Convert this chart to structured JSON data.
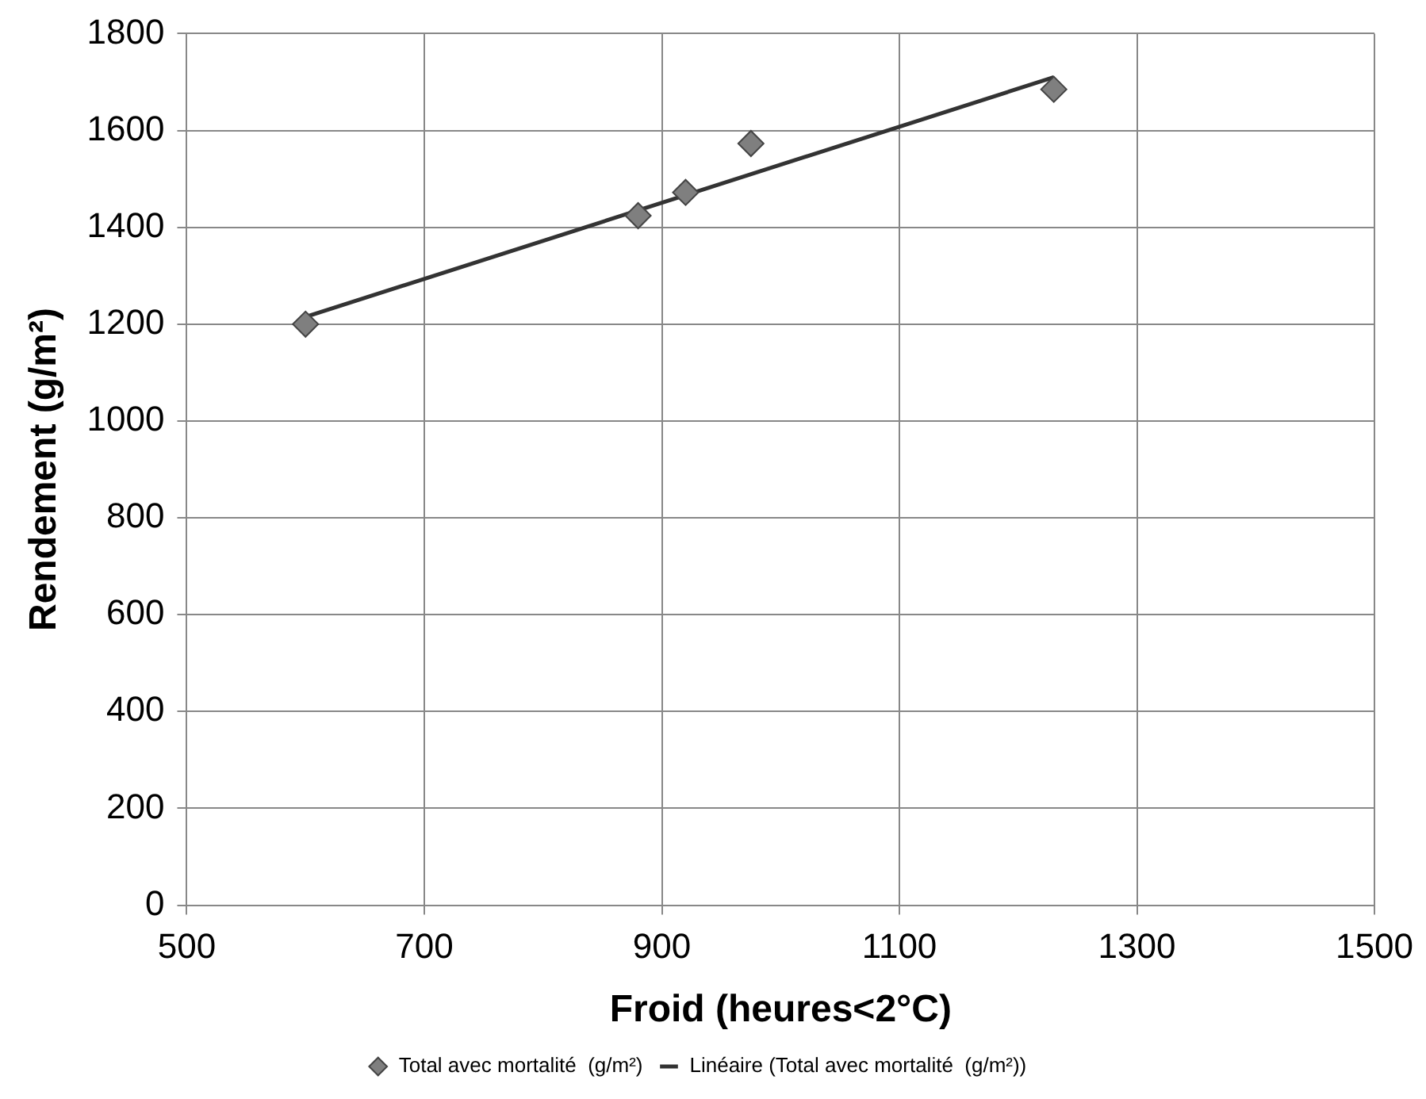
{
  "chart_data": {
    "type": "scatter",
    "xlabel": "Froid (heures<2°C)",
    "ylabel": "Rendement (g/m²)",
    "xlim": [
      500,
      1500
    ],
    "xticks": [
      500,
      700,
      900,
      1100,
      1300,
      1500
    ],
    "ylim": [
      0,
      1800
    ],
    "yticks": [
      0,
      200,
      400,
      600,
      800,
      1000,
      1200,
      1400,
      1600,
      1800
    ],
    "grid": true,
    "legend": "bottom",
    "series": [
      {
        "name": "Total avec mortalité  (g/m²)",
        "marker": "diamond",
        "color": "#7f7f7f",
        "x": [
          600,
          880,
          920,
          975,
          1230
        ],
        "values": [
          1200,
          1424,
          1472,
          1573,
          1685
        ]
      },
      {
        "name": "Linéaire (Total avec mortalité  (g/m²))",
        "type": "line",
        "marker": "none",
        "line_style": "solid",
        "color": "#333333",
        "x": [
          600,
          1230
        ],
        "values": [
          1215,
          1710
        ]
      }
    ]
  }
}
